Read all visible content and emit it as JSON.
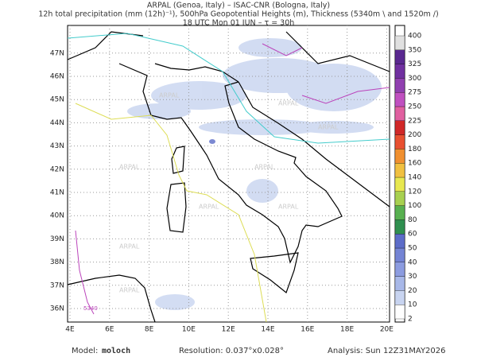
{
  "header": {
    "line1": "ARPAL (Genoa, Italy)  –  ISAC-CNR (Bologna, Italy)",
    "line2": "12h total precipitation (mm (12h)⁻¹), 500hPa Geopotential Heights (m), Thickness (5340m \\ and 1520m /)",
    "line3": "18 UTC Mon 01 JUN   –   τ = 30h"
  },
  "map": {
    "lat_labels": [
      "36N",
      "37N",
      "38N",
      "39N",
      "40N",
      "41N",
      "42N",
      "43N",
      "44N",
      "45N",
      "46N",
      "47N"
    ],
    "lon_labels": [
      "4E",
      "6E",
      "8E",
      "10E",
      "12E",
      "14E",
      "16E",
      "18E",
      "20E"
    ],
    "contour_label": "5340",
    "watermark": "ARPAL"
  },
  "colorbar": {
    "labels": [
      "2",
      "10",
      "20",
      "30",
      "40",
      "50",
      "60",
      "80",
      "100",
      "120",
      "140",
      "160",
      "180",
      "200",
      "225",
      "250",
      "275",
      "300",
      "325",
      "350",
      "400"
    ],
    "colors": [
      "#ffffff",
      "#c8d4f0",
      "#a8b8e8",
      "#8c9ce0",
      "#7484d4",
      "#5c6cc8",
      "#2f8f4f",
      "#58b050",
      "#a8d050",
      "#e8e850",
      "#f0c040",
      "#f09030",
      "#e85030",
      "#d02828",
      "#e060a0",
      "#c050c0",
      "#9040b0",
      "#7030a0",
      "#5a2890",
      "#e0e0e0"
    ]
  },
  "footer": {
    "model_label": "Model:",
    "model": "moloch",
    "resolution": "Resolution: 0.037°x0.028°",
    "analysis": "Analysis: Sun 12Z31MAY2026"
  }
}
